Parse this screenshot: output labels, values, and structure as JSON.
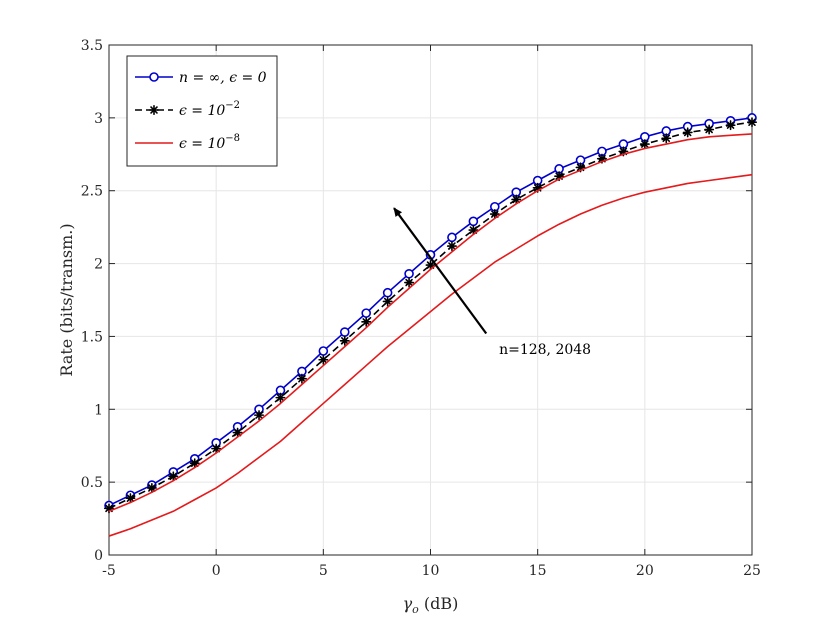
{
  "chart_data": {
    "type": "line",
    "title": "",
    "xlabel": "γ_o (dB)",
    "xlabel_symbol": "γ",
    "xlabel_subscript": "o",
    "xlabel_unit": " (dB)",
    "ylabel": "Rate (bits/transm.)",
    "xlim": [
      -5,
      25
    ],
    "ylim": [
      0,
      3.5
    ],
    "grid": true,
    "legend_position": "top-left",
    "x_ticks": [
      -5,
      0,
      5,
      10,
      15,
      20,
      25
    ],
    "x_tick_labels": [
      "-5",
      "0",
      "5",
      "10",
      "15",
      "20",
      "25"
    ],
    "y_ticks": [
      0,
      0.5,
      1,
      1.5,
      2,
      2.5,
      3,
      3.5
    ],
    "y_tick_labels": [
      "0",
      "0.5",
      "1",
      "1.5",
      "2",
      "2.5",
      "3",
      "3.5"
    ],
    "x": [
      -5,
      -4,
      -3,
      -2,
      -1,
      0,
      1,
      2,
      3,
      4,
      5,
      6,
      7,
      8,
      9,
      10,
      11,
      12,
      13,
      14,
      15,
      16,
      17,
      18,
      19,
      20,
      21,
      22,
      23,
      24,
      25
    ],
    "series": [
      {
        "name": "n = ∞,  ϵ = 0",
        "legend_parts": [
          "n = ∞,  ϵ = 0"
        ],
        "color": "#0000cc",
        "line_style": "solid",
        "marker": "circle",
        "values": [
          0.34,
          0.41,
          0.48,
          0.57,
          0.66,
          0.77,
          0.88,
          1.0,
          1.13,
          1.26,
          1.4,
          1.53,
          1.66,
          1.8,
          1.93,
          2.06,
          2.18,
          2.29,
          2.39,
          2.49,
          2.57,
          2.65,
          2.71,
          2.77,
          2.82,
          2.87,
          2.91,
          2.94,
          2.96,
          2.98,
          3.0
        ]
      },
      {
        "name": "ϵ = 10^-2",
        "legend_base": "ϵ =  10",
        "legend_exp": "−2",
        "color": "#000000",
        "line_style": "dashed",
        "marker": "asterisk",
        "values": [
          0.32,
          0.39,
          0.46,
          0.54,
          0.63,
          0.73,
          0.84,
          0.96,
          1.08,
          1.21,
          1.34,
          1.47,
          1.6,
          1.74,
          1.87,
          1.99,
          2.12,
          2.23,
          2.34,
          2.44,
          2.52,
          2.6,
          2.66,
          2.72,
          2.77,
          2.82,
          2.86,
          2.9,
          2.92,
          2.95,
          2.97
        ]
      },
      {
        "name": "ϵ = 10^-8 (n=128)",
        "legend_base": "ϵ =  10",
        "legend_exp": "−8",
        "color": "#e41a1c",
        "line_style": "solid",
        "marker": "none",
        "values": [
          0.13,
          0.18,
          0.24,
          0.3,
          0.38,
          0.46,
          0.56,
          0.67,
          0.78,
          0.91,
          1.04,
          1.17,
          1.3,
          1.43,
          1.55,
          1.67,
          1.79,
          1.9,
          2.01,
          2.1,
          2.19,
          2.27,
          2.34,
          2.4,
          2.45,
          2.49,
          2.52,
          2.55,
          2.57,
          2.59,
          2.61
        ]
      },
      {
        "name": "ϵ = 10^-8 (n=2048)",
        "legend_hidden": true,
        "color": "#e41a1c",
        "line_style": "solid",
        "marker": "none",
        "values": [
          0.3,
          0.36,
          0.43,
          0.51,
          0.6,
          0.7,
          0.81,
          0.92,
          1.04,
          1.17,
          1.3,
          1.43,
          1.56,
          1.7,
          1.83,
          1.96,
          2.08,
          2.2,
          2.31,
          2.41,
          2.5,
          2.58,
          2.64,
          2.7,
          2.75,
          2.79,
          2.82,
          2.85,
          2.87,
          2.88,
          2.89
        ]
      }
    ],
    "annotations": [
      {
        "text": "n=128, 2048",
        "arrow_from": [
          12.6,
          1.52
        ],
        "arrow_to": [
          8.3,
          2.38
        ],
        "text_at": [
          13.2,
          1.38
        ]
      }
    ]
  }
}
